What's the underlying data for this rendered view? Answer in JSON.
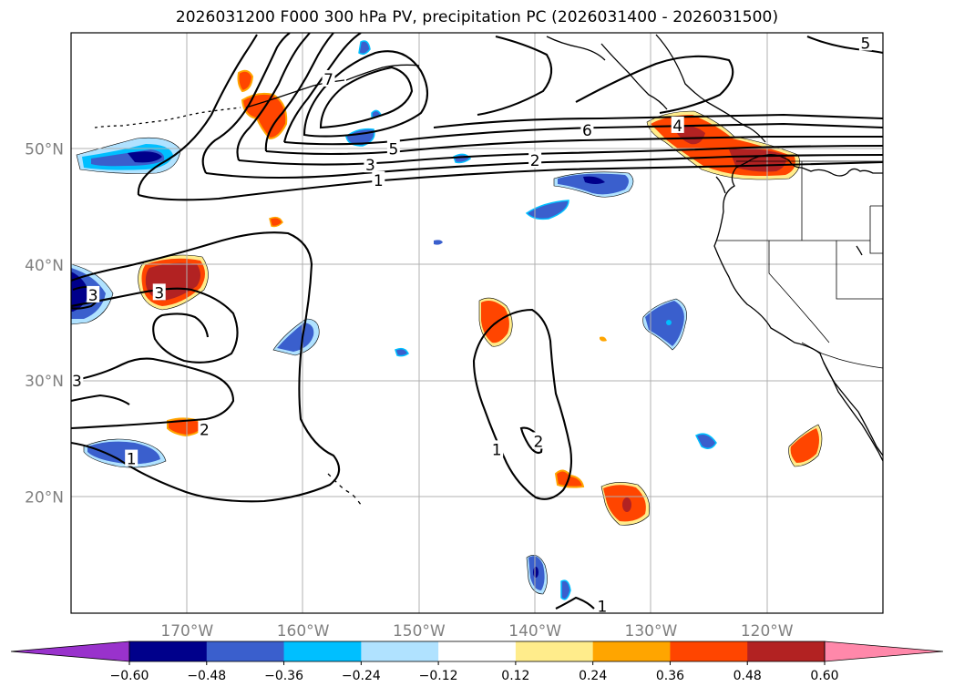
{
  "title": "2026031200 F000 300 hPa PV, precipitation PC (2026031400 - 2026031500)",
  "map": {
    "projection": "plate carree",
    "lon_range": [
      -180,
      -110
    ],
    "lat_range": [
      10,
      60
    ],
    "gridlines": true,
    "lat_ticks": [
      {
        "value": 20,
        "label": "20°N"
      },
      {
        "value": 30,
        "label": "30°N"
      },
      {
        "value": 40,
        "label": "40°N"
      },
      {
        "value": 50,
        "label": "50°N"
      }
    ],
    "lon_ticks": [
      {
        "value": -170,
        "label": "170°W"
      },
      {
        "value": -160,
        "label": "160°W"
      },
      {
        "value": -150,
        "label": "150°W"
      },
      {
        "value": -140,
        "label": "140°W"
      },
      {
        "value": -130,
        "label": "130°W"
      },
      {
        "value": -120,
        "label": "120°W"
      }
    ],
    "contour_labels": [
      {
        "text": "7",
        "lon": -157.8,
        "lat": 56.0
      },
      {
        "text": "6",
        "lon": -135.5,
        "lat": 51.6
      },
      {
        "text": "5",
        "lon": -152.2,
        "lat": 50.0
      },
      {
        "text": "4",
        "lon": -127.7,
        "lat": 52.0
      },
      {
        "text": "3",
        "lon": -154.2,
        "lat": 48.6
      },
      {
        "text": "2",
        "lon": -140.0,
        "lat": 49.0
      },
      {
        "text": "1",
        "lon": -153.5,
        "lat": 47.3
      },
      {
        "text": "5",
        "lon": -111.5,
        "lat": 59.1
      },
      {
        "text": "3",
        "lon": -172.4,
        "lat": 37.6
      },
      {
        "text": "3",
        "lon": -178.1,
        "lat": 37.4
      },
      {
        "text": "3",
        "lon": -179.5,
        "lat": 30.0
      },
      {
        "text": "2",
        "lon": -168.5,
        "lat": 25.8
      },
      {
        "text": "1",
        "lon": -174.8,
        "lat": 23.3
      },
      {
        "text": "1",
        "lon": -143.3,
        "lat": 24.1
      },
      {
        "text": "2",
        "lon": -139.7,
        "lat": 24.8
      },
      {
        "text": "1",
        "lon": -134.2,
        "lat": 10.6
      }
    ]
  },
  "colorbar": {
    "tick_labels": [
      "−0.60",
      "−0.48",
      "−0.36",
      "−0.24",
      "−0.12",
      "0.12",
      "0.24",
      "0.36",
      "0.48",
      "0.60"
    ],
    "colors": [
      "#9932cc",
      "#00008b",
      "#3a5fcd",
      "#00bfff",
      "#b0e2ff",
      "#ffffff",
      "#ffec8b",
      "#ffa500",
      "#ff4500",
      "#b22222",
      "#ff88aa"
    ]
  }
}
